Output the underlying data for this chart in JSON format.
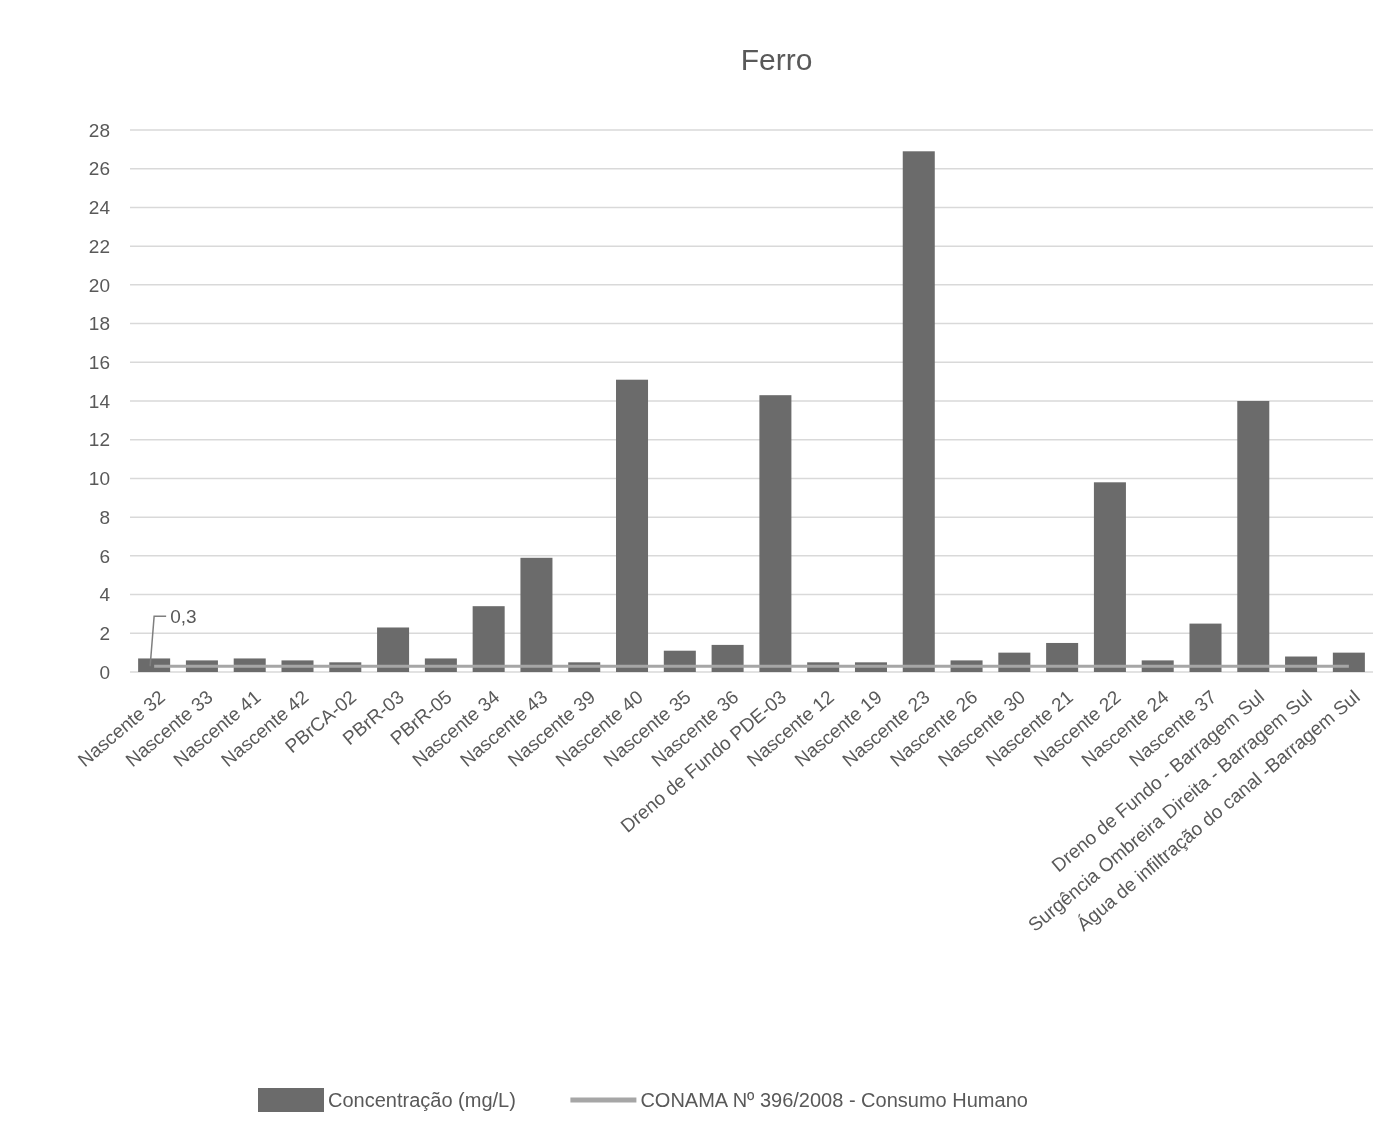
{
  "chart_data": {
    "type": "bar",
    "title": "Ferro",
    "categories": [
      "Nascente 32",
      "Nascente 33",
      "Nascente 41",
      "Nascente 42",
      "PBrCA-02",
      "PBrR-03",
      "PBrR-05",
      "Nascente 34",
      "Nascente 43",
      "Nascente 39",
      "Nascente 40",
      "Nascente 35",
      "Nascente 36",
      "Dreno de Fundo PDE-03",
      "Nascente 12",
      "Nascente 19",
      "Nascente 23",
      "Nascente 26",
      "Nascente 30",
      "Nascente 21",
      "Nascente 22",
      "Nascente 24",
      "Nascente 37",
      "Dreno de Fundo - Barragem Sul",
      "Surgência Ombreira Direita - Barragem Sul",
      "Água de infiltração do canal -Barragem Sul"
    ],
    "series": [
      {
        "name": "Concentração (mg/L)",
        "color": "#6b6b6b",
        "values": [
          0.7,
          0.6,
          0.7,
          0.6,
          0.5,
          2.3,
          0.7,
          3.4,
          5.9,
          0.5,
          15.1,
          1.1,
          1.4,
          14.3,
          0.5,
          0.5,
          26.9,
          0.6,
          1.0,
          1.5,
          9.8,
          0.6,
          2.5,
          14.0,
          0.8,
          1.0
        ]
      },
      {
        "name": "CONAMA Nº 396/2008 - Consumo Humano",
        "type": "line",
        "color": "#a6a6a6",
        "values": [
          0.3,
          0.3,
          0.3,
          0.3,
          0.3,
          0.3,
          0.3,
          0.3,
          0.3,
          0.3,
          0.3,
          0.3,
          0.3,
          0.3,
          0.3,
          0.3,
          0.3,
          0.3,
          0.3,
          0.3,
          0.3,
          0.3,
          0.3,
          0.3,
          0.3,
          0.3
        ]
      }
    ],
    "annotations": [
      {
        "text": "0,3",
        "x": "Nascente 32",
        "y": 0.3
      }
    ],
    "ylim": [
      0,
      28
    ],
    "yticks": [
      0,
      2,
      4,
      6,
      8,
      10,
      12,
      14,
      16,
      18,
      20,
      22,
      24,
      26,
      28
    ],
    "grid": "y",
    "legend": "bottom"
  }
}
